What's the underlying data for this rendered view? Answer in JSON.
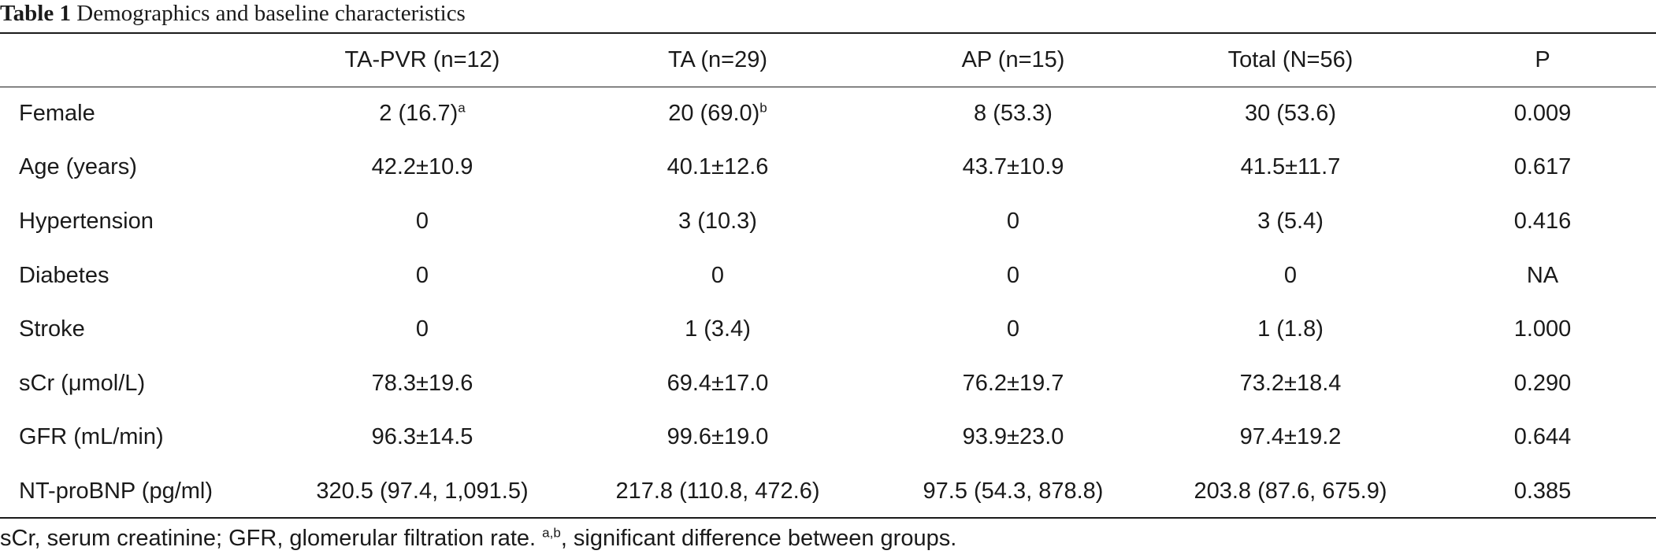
{
  "caption": {
    "label": "Table 1",
    "title": "Demographics and baseline characteristics"
  },
  "table": {
    "headers": [
      "",
      "TA-PVR (n=12)",
      "TA (n=29)",
      "AP (n=15)",
      "Total (N=56)",
      "P"
    ],
    "rows": [
      {
        "label": "Female",
        "cells": [
          {
            "text": "2 (16.7)",
            "sup": "a"
          },
          {
            "text": "20 (69.0)",
            "sup": "b"
          },
          {
            "text": "8 (53.3)"
          },
          {
            "text": "30 (53.6)"
          },
          {
            "text": "0.009"
          }
        ]
      },
      {
        "label": "Age (years)",
        "cells": [
          {
            "text": "42.2±10.9"
          },
          {
            "text": "40.1±12.6"
          },
          {
            "text": "43.7±10.9"
          },
          {
            "text": "41.5±11.7"
          },
          {
            "text": "0.617"
          }
        ]
      },
      {
        "label": "Hypertension",
        "cells": [
          {
            "text": "0"
          },
          {
            "text": "3 (10.3)"
          },
          {
            "text": "0"
          },
          {
            "text": "3 (5.4)"
          },
          {
            "text": "0.416"
          }
        ]
      },
      {
        "label": "Diabetes",
        "cells": [
          {
            "text": "0"
          },
          {
            "text": "0"
          },
          {
            "text": "0"
          },
          {
            "text": "0"
          },
          {
            "text": "NA"
          }
        ]
      },
      {
        "label": "Stroke",
        "cells": [
          {
            "text": "0"
          },
          {
            "text": "1 (3.4)"
          },
          {
            "text": "0"
          },
          {
            "text": "1 (1.8)"
          },
          {
            "text": "1.000"
          }
        ]
      },
      {
        "label": "sCr (μmol/L)",
        "cells": [
          {
            "text": "78.3±19.6"
          },
          {
            "text": "69.4±17.0"
          },
          {
            "text": "76.2±19.7"
          },
          {
            "text": "73.2±18.4"
          },
          {
            "text": "0.290"
          }
        ]
      },
      {
        "label": "GFR (mL/min)",
        "cells": [
          {
            "text": "96.3±14.5"
          },
          {
            "text": "99.6±19.0"
          },
          {
            "text": "93.9±23.0"
          },
          {
            "text": "97.4±19.2"
          },
          {
            "text": "0.644"
          }
        ]
      },
      {
        "label": "NT-proBNP (pg/ml)",
        "cells": [
          {
            "text": "320.5 (97.4, 1,091.5)"
          },
          {
            "text": "217.8 (110.8, 472.6)"
          },
          {
            "text": "97.5 (54.3, 878.8)"
          },
          {
            "text": "203.8 (87.6, 675.9)"
          },
          {
            "text": "0.385"
          }
        ]
      }
    ]
  },
  "footnote": {
    "text_before": "sCr, serum creatinine; GFR, glomerular filtration rate. ",
    "sup": "a,b",
    "text_after": ", significant difference between groups."
  }
}
